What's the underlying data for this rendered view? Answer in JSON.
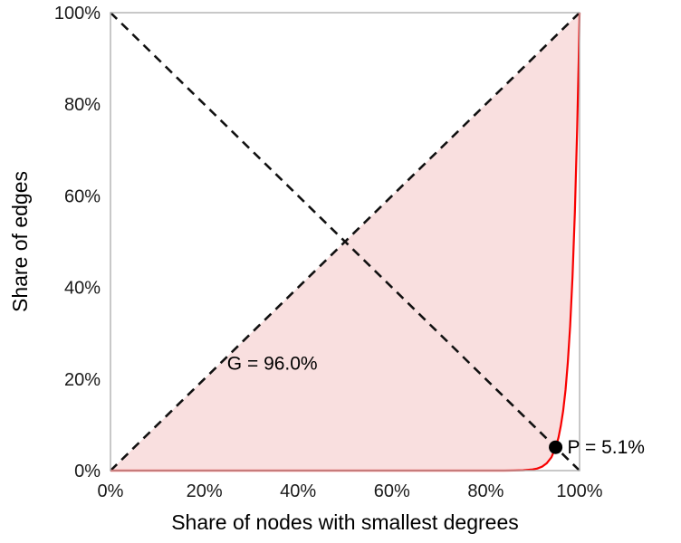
{
  "chart_data": {
    "type": "line",
    "title": "",
    "xlabel": "Share of nodes with smallest degrees",
    "ylabel": "Share of edges",
    "xlim": [
      0,
      100
    ],
    "ylim": [
      0,
      100
    ],
    "grid": false,
    "legend": "none",
    "x_tick_values": [
      0,
      20,
      40,
      60,
      80,
      100
    ],
    "x_tick_labels": [
      "0%",
      "20%",
      "40%",
      "60%",
      "80%",
      "100%"
    ],
    "y_tick_values": [
      0,
      20,
      40,
      60,
      80,
      100
    ],
    "y_tick_labels": [
      "0%",
      "20%",
      "40%",
      "60%",
      "80%",
      "100%"
    ],
    "series": [
      {
        "name": "equality-diagonal",
        "style": "dashed",
        "color": "#111111",
        "points": [
          [
            0,
            0
          ],
          [
            100,
            100
          ]
        ]
      },
      {
        "name": "anti-diagonal",
        "style": "dashed",
        "color": "#111111",
        "points": [
          [
            0,
            100
          ],
          [
            100,
            0
          ]
        ]
      },
      {
        "name": "lorenz-curve",
        "style": "solid",
        "color": "#f80000",
        "points": [
          [
            0,
            0
          ],
          [
            20,
            0
          ],
          [
            40,
            0
          ],
          [
            60,
            0
          ],
          [
            70,
            0
          ],
          [
            75,
            0
          ],
          [
            80,
            0.001
          ],
          [
            84,
            0.005
          ],
          [
            86,
            0.018
          ],
          [
            88,
            0.07
          ],
          [
            90,
            0.25
          ],
          [
            91,
            0.46
          ],
          [
            92,
            0.86
          ],
          [
            93,
            1.6
          ],
          [
            94,
            2.9
          ],
          [
            94.9,
            5.1
          ],
          [
            95.5,
            7.2
          ],
          [
            96,
            9.8
          ],
          [
            96.5,
            13.1
          ],
          [
            97,
            17.6
          ],
          [
            97.5,
            23.6
          ],
          [
            98,
            31.6
          ],
          [
            98.5,
            42.3
          ],
          [
            99,
            56.4
          ],
          [
            99.5,
            75.1
          ],
          [
            99.8,
            89.2
          ],
          [
            100,
            100
          ]
        ]
      }
    ],
    "fill_between": {
      "upper": "equality-diagonal",
      "lower": "lorenz-curve",
      "color": "#f8d7d7",
      "opacity": 0.8
    },
    "annotations": [
      {
        "id": "gini",
        "label": "G = 96.0%",
        "x": 34.5,
        "y": 22,
        "anchor": "middle"
      },
      {
        "id": "intersection",
        "label": "P = 5.1%",
        "x": 97.4,
        "y": 5.1,
        "anchor": "start",
        "marker": {
          "x": 94.9,
          "y": 5.1,
          "shape": "dot",
          "color": "#000000",
          "radius": 7.5
        }
      }
    ],
    "frame_color": "#b0b0b0",
    "background": "#ffffff"
  }
}
